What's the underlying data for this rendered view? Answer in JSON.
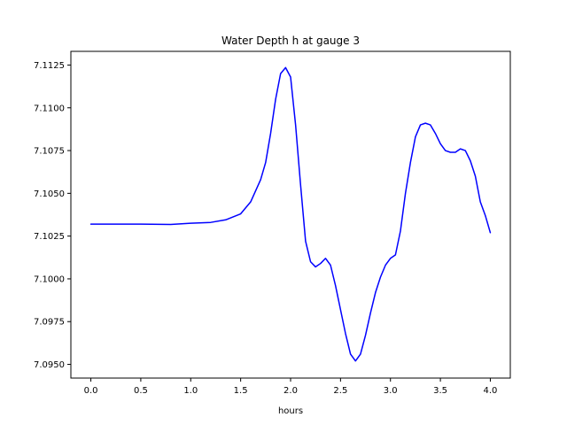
{
  "chart_data": {
    "type": "line",
    "title": "Water Depth h at gauge 3",
    "xlabel": "hours",
    "ylabel": "",
    "xlim": [
      -0.2,
      4.2
    ],
    "ylim": [
      7.0942,
      7.1133
    ],
    "grid": false,
    "legend": "none",
    "x_ticks": [
      {
        "value": 0.0,
        "label": "0.0"
      },
      {
        "value": 0.5,
        "label": "0.5"
      },
      {
        "value": 1.0,
        "label": "1.0"
      },
      {
        "value": 1.5,
        "label": "1.5"
      },
      {
        "value": 2.0,
        "label": "2.0"
      },
      {
        "value": 2.5,
        "label": "2.5"
      },
      {
        "value": 3.0,
        "label": "3.0"
      },
      {
        "value": 3.5,
        "label": "3.5"
      },
      {
        "value": 4.0,
        "label": "4.0"
      }
    ],
    "y_ticks": [
      {
        "value": 7.095,
        "label": "7.0950"
      },
      {
        "value": 7.0975,
        "label": "7.0975"
      },
      {
        "value": 7.1,
        "label": "7.1000"
      },
      {
        "value": 7.1025,
        "label": "7.1025"
      },
      {
        "value": 7.105,
        "label": "7.1050"
      },
      {
        "value": 7.1075,
        "label": "7.1075"
      },
      {
        "value": 7.11,
        "label": "7.1100"
      },
      {
        "value": 7.1125,
        "label": "7.1125"
      }
    ],
    "series": [
      {
        "color": "#0000ff",
        "x": [
          0.0,
          0.5,
          0.8,
          1.0,
          1.2,
          1.35,
          1.5,
          1.6,
          1.7,
          1.75,
          1.8,
          1.85,
          1.9,
          1.95,
          2.0,
          2.05,
          2.1,
          2.15,
          2.2,
          2.25,
          2.3,
          2.35,
          2.4,
          2.45,
          2.5,
          2.55,
          2.6,
          2.65,
          2.7,
          2.75,
          2.8,
          2.85,
          2.9,
          2.95,
          3.0,
          3.05,
          3.1,
          3.15,
          3.2,
          3.25,
          3.3,
          3.35,
          3.4,
          3.45,
          3.5,
          3.55,
          3.6,
          3.65,
          3.7,
          3.75,
          3.8,
          3.85,
          3.9,
          3.95,
          4.0
        ],
        "y": [
          7.1032,
          7.1032,
          7.10318,
          7.10325,
          7.1033,
          7.10345,
          7.1038,
          7.1045,
          7.1058,
          7.1068,
          7.1085,
          7.1105,
          7.112,
          7.11235,
          7.1118,
          7.109,
          7.1055,
          7.1022,
          7.101,
          7.1007,
          7.1009,
          7.1012,
          7.1008,
          7.0996,
          7.0982,
          7.0968,
          7.0956,
          7.0952,
          7.0956,
          7.0967,
          7.098,
          7.0992,
          7.1001,
          7.1008,
          7.1012,
          7.1014,
          7.1028,
          7.105,
          7.1068,
          7.1083,
          7.109,
          7.1091,
          7.109,
          7.1085,
          7.1079,
          7.1075,
          7.1074,
          7.1074,
          7.1076,
          7.1075,
          7.1069,
          7.106,
          7.1045,
          7.1037,
          7.1027
        ]
      }
    ]
  }
}
